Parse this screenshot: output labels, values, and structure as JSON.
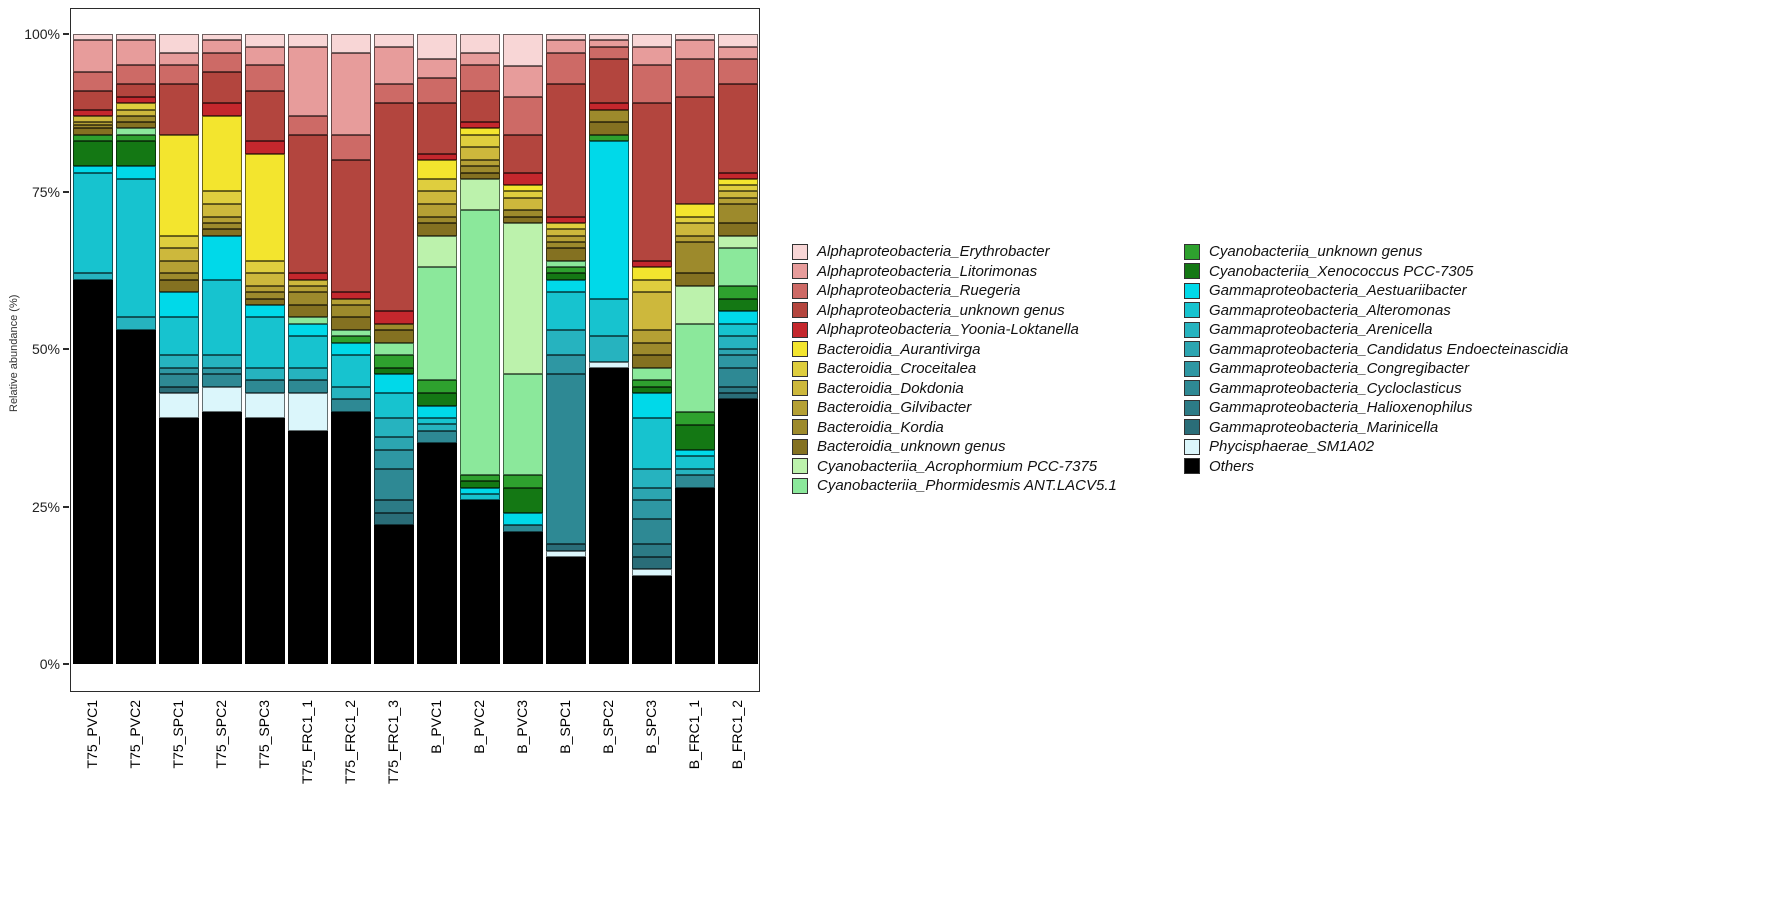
{
  "chart_data": {
    "type": "bar",
    "stacked": true,
    "title": "",
    "xlabel": "",
    "ylabel": "Relative abundance (%)",
    "ylim": [
      0,
      100
    ],
    "ytick_values": [
      0,
      25,
      50,
      75,
      100
    ],
    "ytick_labels": [
      "0%",
      "25%",
      "50%",
      "75%",
      "100%"
    ],
    "grid": false,
    "legend_position": "right",
    "legend_split": [
      13,
      12
    ],
    "panel_border_color": "#2b2b2b",
    "categories": [
      "T75_PVC1",
      "T75_PVC2",
      "T75_SPC1",
      "T75_SPC2",
      "T75_SPC3",
      "T75_FRC1_1",
      "T75_FRC1_2",
      "T75_FRC1_3",
      "B_PVC1",
      "B_PVC2",
      "B_PVC3",
      "B_SPC1",
      "B_SPC2",
      "B_SPC3",
      "B_FRC1_1",
      "B_FRC1_2"
    ],
    "series": [
      {
        "name": "Alphaproteobacteria_Erythrobacter",
        "color": "#F8D6D6",
        "values": [
          1,
          1,
          3,
          1,
          2,
          2,
          3,
          2,
          4,
          3,
          5,
          1,
          1,
          2,
          1,
          2
        ]
      },
      {
        "name": "Alphaproteobacteria_Litorimonas",
        "color": "#E79C9B",
        "values": [
          5,
          4,
          2,
          2,
          3,
          11,
          13,
          6,
          3,
          2,
          5,
          2,
          1,
          3,
          3,
          2
        ]
      },
      {
        "name": "Alphaproteobacteria_Ruegeria",
        "color": "#CD6A66",
        "values": [
          3,
          3,
          3,
          3,
          4,
          3,
          4,
          3,
          4,
          4,
          6,
          5,
          2,
          6,
          6,
          4
        ]
      },
      {
        "name": "Alphaproteobacteria_unknown genus",
        "color": "#B3453E",
        "values": [
          3,
          2,
          8,
          5,
          8,
          22,
          21,
          33,
          8,
          5,
          6,
          21,
          7,
          25,
          17,
          14
        ]
      },
      {
        "name": "Alphaproteobacteria_Yoonia-Loktanella",
        "color": "#C4272D",
        "values": [
          1,
          1,
          0,
          2,
          2,
          1,
          1,
          2,
          1,
          1,
          2,
          1,
          1,
          1,
          0,
          1
        ]
      },
      {
        "name": "Bacteroidia_Aurantivirga",
        "color": "#F3E52E",
        "values": [
          0,
          0,
          16,
          12,
          17,
          0,
          0,
          0,
          3,
          1,
          1,
          0,
          0,
          2,
          2,
          1
        ]
      },
      {
        "name": "Bacteroidia_Croceitalea",
        "color": "#DFCE3E",
        "values": [
          0,
          1,
          2,
          2,
          2,
          0,
          0,
          0,
          2,
          2,
          1,
          1,
          0,
          2,
          1,
          1
        ]
      },
      {
        "name": "Bacteroidia_Dokdonia",
        "color": "#CDB83C",
        "values": [
          1,
          1,
          2,
          2,
          2,
          1,
          0,
          0,
          2,
          2,
          2,
          1,
          0,
          6,
          2,
          1
        ]
      },
      {
        "name": "Bacteroidia_Gilvibacter",
        "color": "#B5A034",
        "values": [
          0.5,
          0,
          2,
          1,
          1,
          1,
          1,
          0,
          2,
          1,
          0,
          1,
          0,
          2,
          1,
          1
        ]
      },
      {
        "name": "Bacteroidia_Kordia",
        "color": "#9D8A2C",
        "values": [
          0.5,
          1,
          1,
          1,
          1,
          2,
          2,
          1,
          1,
          1,
          1,
          1,
          2,
          2,
          5,
          3
        ]
      },
      {
        "name": "Bacteroidia_unknown genus",
        "color": "#847121",
        "values": [
          1,
          1,
          2,
          1,
          1,
          2,
          2,
          2,
          2,
          1,
          1,
          2,
          2,
          2,
          2,
          2
        ]
      },
      {
        "name": "Cyanobacteriia_Acrophormium PCC-7375",
        "color": "#BCF2AC",
        "values": [
          0,
          0,
          0,
          0,
          0,
          0,
          0,
          0,
          5,
          5,
          24,
          0,
          0,
          0,
          6,
          2
        ]
      },
      {
        "name": "Cyanobacteriia_Phormidesmis ANT.LACV5.1",
        "color": "#8BE89B",
        "values": [
          0,
          1,
          0,
          0,
          0,
          1,
          1,
          2,
          18,
          42,
          16,
          1,
          0,
          2,
          14,
          6
        ]
      },
      {
        "name": "Cyanobacteriia_unknown genus",
        "color": "#2EA12E",
        "values": [
          1,
          1,
          0,
          0,
          0,
          0,
          1,
          2,
          2,
          1,
          2,
          1,
          1,
          1,
          2,
          2
        ]
      },
      {
        "name": "Cyanobacteriia_Xenococcus PCC-7305",
        "color": "#147814",
        "values": [
          4,
          4,
          0,
          0,
          0,
          0,
          0,
          1,
          2,
          1,
          4,
          1,
          0,
          1,
          4,
          2
        ]
      },
      {
        "name": "Gammaproteobacteria_Aestuariibacter",
        "color": "#00D9E9",
        "values": [
          1,
          2,
          4,
          7,
          2,
          2,
          2,
          3,
          2,
          1,
          2,
          2,
          25,
          4,
          1,
          2
        ]
      },
      {
        "name": "Gammaproteobacteria_Alteromonas",
        "color": "#17C3CF",
        "values": [
          16,
          22,
          6,
          12,
          8,
          5,
          5,
          4,
          1,
          1,
          0,
          6,
          6,
          8,
          2,
          2
        ]
      },
      {
        "name": "Gammaproteobacteria_Arenicella",
        "color": "#26B3BF",
        "values": [
          1,
          2,
          2,
          2,
          2,
          2,
          2,
          3,
          1,
          0,
          0,
          4,
          4,
          3,
          1,
          2
        ]
      },
      {
        "name": "Gammaproteobacteria_Candidatus Endoecteinascidia",
        "color": "#2CA5B1",
        "values": [
          0,
          0,
          0,
          0,
          0,
          0,
          0,
          2,
          0,
          0,
          0,
          0,
          0,
          2,
          0,
          1
        ]
      },
      {
        "name": "Gammaproteobacteria_Congregibacter",
        "color": "#2E97A3",
        "values": [
          0,
          0,
          1,
          1,
          0,
          0,
          0,
          3,
          0,
          0,
          0,
          3,
          0,
          3,
          0,
          2
        ]
      },
      {
        "name": "Gammaproteobacteria_Cycloclasticus",
        "color": "#2E8994",
        "values": [
          0,
          0,
          2,
          2,
          2,
          2,
          2,
          5,
          2,
          0,
          1,
          27,
          0,
          4,
          2,
          3
        ]
      },
      {
        "name": "Gammaproteobacteria_Halioxenophilus",
        "color": "#2C7B86",
        "values": [
          0,
          0,
          0,
          0,
          0,
          0,
          0,
          2,
          0,
          0,
          0,
          0,
          0,
          2,
          0,
          1
        ]
      },
      {
        "name": "Gammaproteobacteria_Marinicella",
        "color": "#2A6D78",
        "values": [
          0,
          0,
          1,
          0,
          0,
          0,
          0,
          2,
          0,
          0,
          0,
          1,
          0,
          2,
          0,
          1
        ]
      },
      {
        "name": "Phycisphaerae_SM1A02",
        "color": "#DBF6FB",
        "values": [
          0,
          0,
          4,
          4,
          4,
          6,
          0,
          0,
          0,
          0,
          0,
          1,
          1,
          1,
          0,
          0
        ]
      },
      {
        "name": "Others",
        "color": "#000000",
        "values": [
          61,
          53,
          39,
          40,
          39,
          37,
          40,
          22,
          35,
          26,
          21,
          17,
          47,
          14,
          28,
          42
        ]
      }
    ]
  }
}
